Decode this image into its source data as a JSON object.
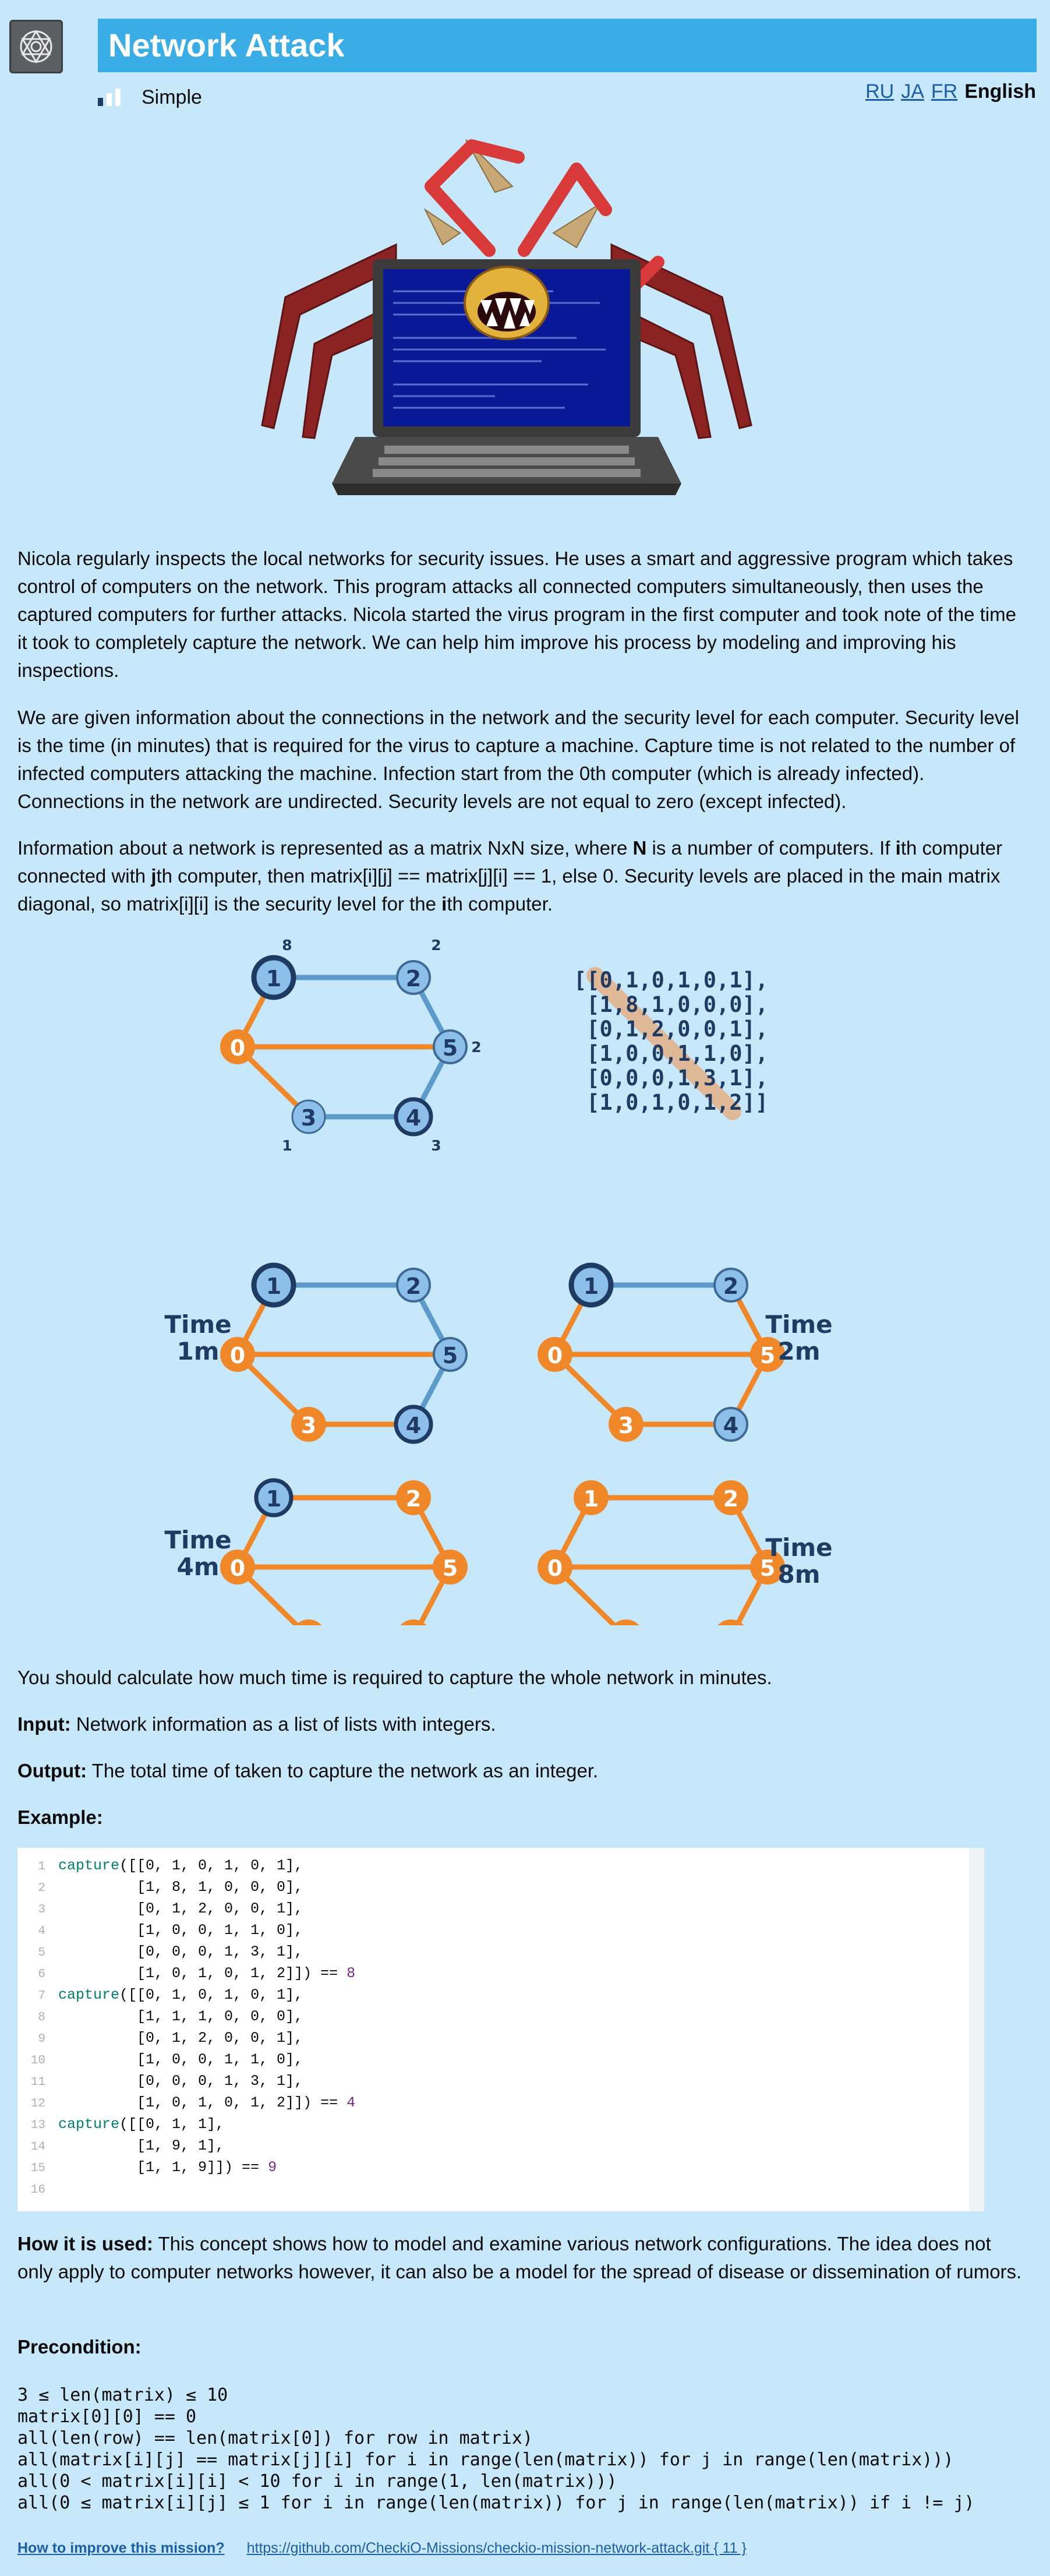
{
  "header": {
    "title": "Network Attack",
    "difficulty": "Simple",
    "languages": [
      "RU",
      "JA",
      "FR"
    ],
    "active_language": "English"
  },
  "description": {
    "p1": "Nicola regularly inspects the local networks for security issues. He uses a smart and aggressive program which takes control of computers on the network. This program attacks all connected computers simultaneously, then uses the captured computers for further attacks. Nicola started the virus program in the first computer and took note of the time it took to completely capture the network. We can help him improve his process by modeling and improving his inspections.",
    "p2": "We are given information about the connections in the network and the security level for each computer. Security level is the time (in minutes) that is required for the virus to capture a machine. Capture time is not related to the number of infected computers attacking the machine. Infection start from the 0th computer (which is already infected). Connections in the network are undirected. Security levels are not equal to zero (except infected).",
    "p3": {
      "a": "Information about a network is represented as a matrix NxN size, where ",
      "b": "N",
      "c": " is a number of computers. If ",
      "d": "i",
      "e": "th computer connected with ",
      "f": "j",
      "g": "th computer, then matrix[i][j] == matrix[j][i] == 1, else 0. Security levels are placed in the main matrix diagonal, so matrix[i][i] is the security level for the ",
      "h": "i",
      "i": "th computer."
    }
  },
  "figure": {
    "node_labels": [
      "0",
      "1",
      "2",
      "3",
      "4",
      "5"
    ],
    "security_labels": {
      "n1": "8",
      "n2": "2",
      "n5": "2",
      "n3": "1",
      "n4": "3"
    },
    "matrix_rows": [
      "[[0,1,0,1,0,1],",
      " [1,8,1,0,0,0],",
      " [0,1,2,0,0,1],",
      " [1,0,0,1,1,0],",
      " [0,0,0,1,3,1],",
      " [1,0,1,0,1,2]]"
    ],
    "time_labels": [
      {
        "word": "Time",
        "value": "1m"
      },
      {
        "word": "Time",
        "value": "2m"
      },
      {
        "word": "Time",
        "value": "4m"
      },
      {
        "word": "Time",
        "value": "8m"
      }
    ]
  },
  "sections": {
    "task": "You should calculate how much time is required to capture the whole network in minutes.",
    "input_label": "Input:",
    "input_text": " Network information as a list of lists with integers.",
    "output_label": "Output:",
    "output_text": " The total time of taken to capture the network as an integer.",
    "example_label": "Example:",
    "how_used_label": "How it is used:",
    "how_used_text": " This concept shows how to model and examine various network configurations. The idea does not only apply to computer networks however, it can also be a model for the spread of disease or dissemination of rumors.",
    "precondition_label": "Precondition:"
  },
  "code": {
    "lines": [
      {
        "n": "1",
        "fn": "capture",
        "rest": "([[0, 1, 0, 1, 0, 1],"
      },
      {
        "n": "2",
        "fn": "",
        "rest": "         [1, 8, 1, 0, 0, 0],"
      },
      {
        "n": "3",
        "fn": "",
        "rest": "         [0, 1, 2, 0, 0, 1],"
      },
      {
        "n": "4",
        "fn": "",
        "rest": "         [1, 0, 0, 1, 1, 0],"
      },
      {
        "n": "5",
        "fn": "",
        "rest": "         [0, 0, 0, 1, 3, 1],"
      },
      {
        "n": "6",
        "fn": "",
        "rest": "         [1, 0, 1, 0, 1, 2]]) == ",
        "result": "8"
      },
      {
        "n": "7",
        "fn": "capture",
        "rest": "([[0, 1, 0, 1, 0, 1],"
      },
      {
        "n": "8",
        "fn": "",
        "rest": "         [1, 1, 1, 0, 0, 0],"
      },
      {
        "n": "9",
        "fn": "",
        "rest": "         [0, 1, 2, 0, 0, 1],"
      },
      {
        "n": "10",
        "fn": "",
        "rest": "         [1, 0, 0, 1, 1, 0],"
      },
      {
        "n": "11",
        "fn": "",
        "rest": "         [0, 0, 0, 1, 3, 1],"
      },
      {
        "n": "12",
        "fn": "",
        "rest": "         [1, 0, 1, 0, 1, 2]]) == ",
        "result": "4"
      },
      {
        "n": "13",
        "fn": "capture",
        "rest": "([[0, 1, 1],"
      },
      {
        "n": "14",
        "fn": "",
        "rest": "         [1, 9, 1],"
      },
      {
        "n": "15",
        "fn": "",
        "rest": "         [1, 1, 9]]) == ",
        "result": "9"
      },
      {
        "n": "16",
        "fn": "",
        "rest": ""
      }
    ]
  },
  "preconditions": [
    "3 ≤ len(matrix) ≤ 10",
    "matrix[0][0] == 0",
    "all(len(row) == len(matrix[0]) for row in matrix)",
    "all(matrix[i][j] == matrix[j][i] for i in range(len(matrix)) for j in range(len(matrix)))",
    "all(0 < matrix[i][i] < 10 for i in range(1, len(matrix)))",
    "all(0 ≤ matrix[i][j] ≤ 1 for i in range(len(matrix)) for j in range(len(matrix)) if i != j)"
  ],
  "footer": {
    "how_to_improve": "How to improve this mission?",
    "repo_link": "https://github.com/CheckiO-Missions/checkio-mission-network-attack.git { 11 }"
  },
  "colors": {
    "page_bg": "#c6e8fa",
    "title_bar": "#3aace6",
    "infected": "#f0882a",
    "uninfected": "#8cc0ea",
    "node_dark": "#1f3a63",
    "edge_blue": "#5c9acb",
    "link": "#1d5ea8"
  }
}
